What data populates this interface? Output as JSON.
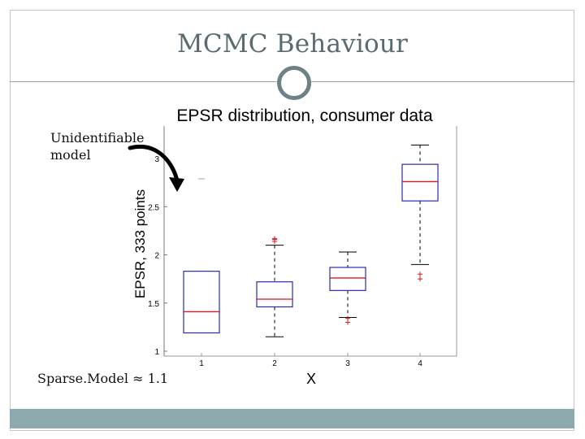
{
  "slide": {
    "title": "MCMC Behaviour",
    "annotation_top": "Unidentifiable model",
    "annotation_bottom": "Sparse.Model ≈ 1.1"
  },
  "colors": {
    "box_edge": "#2b2bb0",
    "median": "#e0141e",
    "outlier": "#d81818",
    "whisker": "#000000",
    "accent_bar": "#8eaab0"
  },
  "chart_data": {
    "type": "box",
    "title": "EPSR distribution, consumer data",
    "ylabel": "EPSR, 333 points",
    "xlabel": "X",
    "ylim": [
      1,
      3.2
    ],
    "yticks": [
      "1",
      "1.5",
      "2",
      "2.5",
      "3"
    ],
    "categories": [
      "1",
      "2",
      "3",
      "4"
    ],
    "boxes": [
      {
        "category": "1",
        "whisker_low": 1.19,
        "q1": 1.19,
        "median": 1.41,
        "q3": 1.83,
        "whisker_high": 1.83,
        "outliers": [
          2.79
        ]
      },
      {
        "category": "2",
        "whisker_low": 1.15,
        "q1": 1.46,
        "median": 1.54,
        "q3": 1.72,
        "whisker_high": 2.1,
        "outliers": [
          2.14,
          2.16,
          2.17
        ]
      },
      {
        "category": "3",
        "whisker_low": 1.35,
        "q1": 1.63,
        "median": 1.76,
        "q3": 1.87,
        "whisker_high": 2.03,
        "outliers": [
          1.3,
          1.34
        ]
      },
      {
        "category": "4",
        "whisker_low": 1.9,
        "q1": 2.56,
        "median": 2.76,
        "q3": 2.94,
        "whisker_high": 3.14,
        "outliers": [
          1.75,
          1.8
        ]
      }
    ]
  }
}
